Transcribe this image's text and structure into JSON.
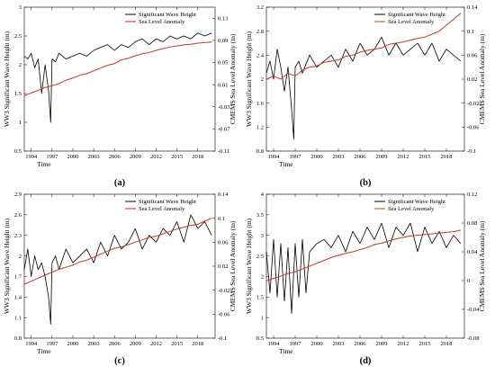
{
  "chart_data": [
    {
      "type": "line",
      "panel_label": "(a)",
      "xlabel": "Time",
      "ylabel_left": "WW3 Significant Wave Height (m)",
      "ylabel_right": "CMEMS Sea Level Anomaly (m)",
      "xlim": [
        1993,
        2020.5
      ],
      "xticks": [
        1994,
        1997,
        2000,
        2003,
        2006,
        2009,
        2012,
        2015,
        2018
      ],
      "ylim_left": [
        0.5,
        3
      ],
      "yticks_left": [
        "0.5",
        "1",
        "1.5",
        "2",
        "2.5",
        "3"
      ],
      "ylim_right": [
        -0.11,
        0.15
      ],
      "yticks_right": [
        "-0.11",
        "-0.07",
        "-0.03",
        "0.01",
        "0.05",
        "0.09",
        "0.13"
      ],
      "legend": "top-right",
      "series": [
        {
          "name": "Significant Wave Height",
          "color": "#000000",
          "axis": "left",
          "x": [
            1993.0,
            1993.5,
            1994.0,
            1994.5,
            1995.0,
            1995.5,
            1996.0,
            1996.5,
            1996.8,
            1997.0,
            1997.5,
            1998.0,
            1999.0,
            2000.0,
            2001.0,
            2002.0,
            2003.0,
            2004.0,
            2005.0,
            2006.0,
            2007.0,
            2008.0,
            2009.0,
            2010.0,
            2011.0,
            2012.0,
            2013.0,
            2014.0,
            2015.0,
            2016.0,
            2017.0,
            2018.0,
            2019.0,
            2020.0
          ],
          "y": [
            2.15,
            2.1,
            2.2,
            1.95,
            2.1,
            1.5,
            2.0,
            1.55,
            1.0,
            2.1,
            2.05,
            2.2,
            2.1,
            2.15,
            2.2,
            2.15,
            2.25,
            2.3,
            2.35,
            2.25,
            2.35,
            2.3,
            2.4,
            2.45,
            2.35,
            2.45,
            2.4,
            2.5,
            2.45,
            2.5,
            2.45,
            2.55,
            2.5,
            2.55
          ]
        },
        {
          "name": "Sea Level Anomaly",
          "color": "#c0392b",
          "axis": "right",
          "x": [
            1993.0,
            1994.0,
            1995.0,
            1996.0,
            1997.0,
            1998.0,
            1999.0,
            2000.0,
            2001.0,
            2002.0,
            2003.0,
            2004.0,
            2005.0,
            2006.0,
            2007.0,
            2008.0,
            2009.0,
            2010.0,
            2011.0,
            2012.0,
            2013.0,
            2014.0,
            2015.0,
            2016.0,
            2017.0,
            2018.0,
            2019.0,
            2020.0
          ],
          "y": [
            -0.01,
            -0.005,
            0.0,
            0.005,
            0.008,
            0.012,
            0.018,
            0.022,
            0.027,
            0.03,
            0.035,
            0.04,
            0.045,
            0.048,
            0.055,
            0.058,
            0.062,
            0.066,
            0.068,
            0.072,
            0.075,
            0.078,
            0.08,
            0.082,
            0.083,
            0.085,
            0.086,
            0.087
          ]
        }
      ]
    },
    {
      "type": "line",
      "panel_label": "(b)",
      "xlabel": "Time",
      "ylabel_left": "WW3 Significant Wave Height (m)",
      "ylabel_right": "CMEMS Sea Level Anomaly (m)",
      "xlim": [
        1993,
        2020.5
      ],
      "xticks": [
        1994,
        1997,
        2000,
        2003,
        2006,
        2009,
        2012,
        2015,
        2018
      ],
      "ylim_left": [
        0.8,
        3.2
      ],
      "yticks_left": [
        "0.8",
        "1.2",
        "1.6",
        "2",
        "2.4",
        "2.8",
        "3.2"
      ],
      "ylim_right": [
        -0.1,
        0.14
      ],
      "yticks_right": [
        "-0.1",
        "-0.06",
        "-0.02",
        "0.02",
        "0.06",
        "0.1",
        "0.14"
      ],
      "legend": "top-right",
      "series": [
        {
          "name": "Significant Wave Height",
          "color": "#000000",
          "axis": "left",
          "x": [
            1993.0,
            1993.5,
            1994.0,
            1994.5,
            1995.0,
            1995.5,
            1996.0,
            1996.5,
            1996.8,
            1997.0,
            1997.5,
            1998.0,
            1999.0,
            2000.0,
            2001.0,
            2002.0,
            2003.0,
            2004.0,
            2005.0,
            2006.0,
            2007.0,
            2008.0,
            2009.0,
            2010.0,
            2011.0,
            2012.0,
            2013.0,
            2014.0,
            2015.0,
            2016.0,
            2017.0,
            2018.0,
            2019.0,
            2020.0
          ],
          "y": [
            2.1,
            2.3,
            2.0,
            2.5,
            2.2,
            1.8,
            2.2,
            1.5,
            1.0,
            2.2,
            2.3,
            2.1,
            2.4,
            2.2,
            2.3,
            2.4,
            2.2,
            2.5,
            2.3,
            2.6,
            2.4,
            2.5,
            2.7,
            2.4,
            2.6,
            2.4,
            2.5,
            2.6,
            2.4,
            2.6,
            2.3,
            2.5,
            2.4,
            2.3
          ]
        },
        {
          "name": "Sea Level Anomaly",
          "color": "#c0392b",
          "axis": "right",
          "x": [
            1993.0,
            1994.0,
            1995.0,
            1996.0,
            1997.0,
            1998.0,
            1999.0,
            2000.0,
            2001.0,
            2002.0,
            2003.0,
            2004.0,
            2005.0,
            2006.0,
            2007.0,
            2008.0,
            2009.0,
            2010.0,
            2011.0,
            2012.0,
            2013.0,
            2014.0,
            2015.0,
            2016.0,
            2017.0,
            2018.0,
            2019.0,
            2020.0
          ],
          "y": [
            0.02,
            0.025,
            0.02,
            0.03,
            0.025,
            0.035,
            0.04,
            0.042,
            0.048,
            0.05,
            0.052,
            0.058,
            0.06,
            0.065,
            0.068,
            0.07,
            0.072,
            0.078,
            0.08,
            0.082,
            0.085,
            0.088,
            0.09,
            0.095,
            0.1,
            0.11,
            0.12,
            0.13
          ]
        }
      ]
    },
    {
      "type": "line",
      "panel_label": "(c)",
      "xlabel": "Time",
      "ylabel_left": "WW3 Significant Wave Height (m)",
      "ylabel_right": "CMEMS Sea Level Anomaly (m)",
      "xlim": [
        1993,
        2020.5
      ],
      "xticks": [
        1994,
        1997,
        2000,
        2003,
        2006,
        2009,
        2012,
        2015,
        2018
      ],
      "ylim_left": [
        0.8,
        2.9
      ],
      "yticks_left": [
        "0.8",
        "1.1",
        "1.4",
        "1.7",
        "2",
        "2.3",
        "2.6",
        "2.9"
      ],
      "ylim_right": [
        -0.1,
        0.14
      ],
      "yticks_right": [
        "-0.1",
        "-0.06",
        "-0.02",
        "0.02",
        "0.06",
        "0.1",
        "0.14"
      ],
      "legend": "top-right",
      "series": [
        {
          "name": "Significant Wave Height",
          "color": "#000000",
          "axis": "left",
          "x": [
            1993.0,
            1993.5,
            1994.0,
            1994.5,
            1995.0,
            1995.5,
            1996.0,
            1996.5,
            1996.8,
            1997.0,
            1997.5,
            1998.0,
            1999.0,
            2000.0,
            2001.0,
            2002.0,
            2003.0,
            2004.0,
            2005.0,
            2006.0,
            2007.0,
            2008.0,
            2009.0,
            2010.0,
            2011.0,
            2012.0,
            2013.0,
            2014.0,
            2015.0,
            2016.0,
            2017.0,
            2018.0,
            2019.0,
            2020.0
          ],
          "y": [
            1.8,
            2.1,
            1.7,
            2.0,
            1.8,
            1.9,
            1.7,
            1.4,
            1.0,
            1.9,
            2.0,
            1.8,
            2.1,
            1.9,
            2.0,
            2.1,
            1.9,
            2.2,
            2.0,
            2.3,
            2.1,
            2.2,
            2.4,
            2.1,
            2.3,
            2.2,
            2.4,
            2.3,
            2.5,
            2.2,
            2.6,
            2.4,
            2.5,
            2.3
          ]
        },
        {
          "name": "Sea Level Anomaly",
          "color": "#c0392b",
          "axis": "right",
          "x": [
            1993.0,
            1994.0,
            1995.0,
            1996.0,
            1997.0,
            1998.0,
            1999.0,
            2000.0,
            2001.0,
            2002.0,
            2003.0,
            2004.0,
            2005.0,
            2006.0,
            2007.0,
            2008.0,
            2009.0,
            2010.0,
            2011.0,
            2012.0,
            2013.0,
            2014.0,
            2015.0,
            2016.0,
            2017.0,
            2018.0,
            2019.0,
            2020.0
          ],
          "y": [
            -0.01,
            -0.005,
            0.0,
            0.005,
            0.01,
            0.015,
            0.018,
            0.022,
            0.027,
            0.03,
            0.035,
            0.04,
            0.045,
            0.05,
            0.052,
            0.056,
            0.06,
            0.064,
            0.068,
            0.07,
            0.074,
            0.078,
            0.082,
            0.085,
            0.088,
            0.09,
            0.095,
            0.1
          ]
        }
      ]
    },
    {
      "type": "line",
      "panel_label": "(d)",
      "xlabel": "Time",
      "ylabel_left": "WW3 Significant Wave Height (m)",
      "ylabel_right": "CMEMS Sea Level Anomaly (m)",
      "xlim": [
        1993,
        2020.5
      ],
      "xticks": [
        1994,
        1997,
        2000,
        2003,
        2006,
        2009,
        2012,
        2015,
        2018
      ],
      "ylim_left": [
        0.5,
        4
      ],
      "yticks_left": [
        "0.5",
        "1",
        "1.5",
        "2",
        "2.5",
        "3",
        "3.5",
        "4"
      ],
      "ylim_right": [
        -0.08,
        0.12
      ],
      "yticks_right": [
        "-0.08",
        "-0.04",
        "0",
        "0.04",
        "0.08",
        "0.12"
      ],
      "legend": "top-right",
      "series": [
        {
          "name": "Significant Wave Height",
          "color": "#000000",
          "axis": "left",
          "x": [
            1993.0,
            1993.5,
            1994.0,
            1994.5,
            1995.0,
            1995.5,
            1996.0,
            1996.5,
            1997.0,
            1997.5,
            1998.0,
            1998.5,
            1999.0,
            2000.0,
            2001.0,
            2002.0,
            2003.0,
            2004.0,
            2005.0,
            2006.0,
            2007.0,
            2008.0,
            2009.0,
            2010.0,
            2011.0,
            2012.0,
            2013.0,
            2014.0,
            2015.0,
            2016.0,
            2017.0,
            2018.0,
            2019.0,
            2020.0
          ],
          "y": [
            2.6,
            1.6,
            2.9,
            1.5,
            2.8,
            1.4,
            2.7,
            1.1,
            2.8,
            1.5,
            2.9,
            1.6,
            2.6,
            2.8,
            2.9,
            2.7,
            3.0,
            2.6,
            3.1,
            2.8,
            3.2,
            2.9,
            3.3,
            2.7,
            3.2,
            3.0,
            3.3,
            2.6,
            3.2,
            2.8,
            3.1,
            2.7,
            3.0,
            2.8
          ]
        },
        {
          "name": "Sea Level Anomaly",
          "color": "#c0392b",
          "axis": "right",
          "x": [
            1993.0,
            1994.0,
            1995.0,
            1996.0,
            1997.0,
            1998.0,
            1999.0,
            2000.0,
            2001.0,
            2002.0,
            2003.0,
            2004.0,
            2005.0,
            2006.0,
            2007.0,
            2008.0,
            2009.0,
            2010.0,
            2011.0,
            2012.0,
            2013.0,
            2014.0,
            2015.0,
            2016.0,
            2017.0,
            2018.0,
            2019.0,
            2020.0
          ],
          "y": [
            0.0,
            0.003,
            0.006,
            0.01,
            0.012,
            0.016,
            0.02,
            0.024,
            0.028,
            0.032,
            0.035,
            0.038,
            0.04,
            0.043,
            0.046,
            0.05,
            0.052,
            0.055,
            0.058,
            0.06,
            0.062,
            0.063,
            0.064,
            0.065,
            0.066,
            0.067,
            0.068,
            0.07
          ]
        }
      ]
    }
  ]
}
